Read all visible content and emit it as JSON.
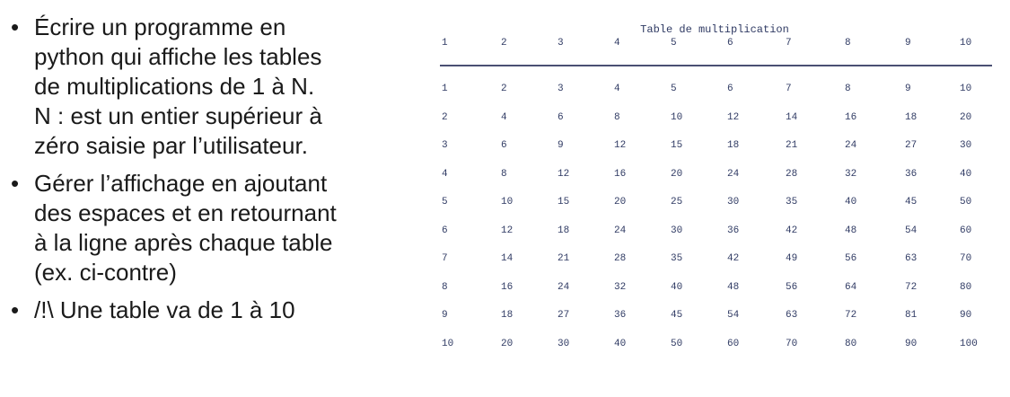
{
  "bullets": [
    "Écrire un programme en\npython qui affiche les tables\nde multiplications de 1 à N.\nN : est un entier supérieur à\nzéro saisie par l’utilisateur.",
    "Gérer l’affichage en ajoutant\ndes espaces et en retournant\nà la ligne après chaque table\n(ex. ci-contre)",
    "/!\\ Une table va de 1 à 10"
  ],
  "bullet_symbol": "•",
  "table": {
    "title": "Table de multiplication",
    "header": [
      "1",
      "2",
      "3",
      "4",
      "5",
      "6",
      "7",
      "8",
      "9",
      "10"
    ],
    "rows": [
      [
        "1",
        "2",
        "3",
        "4",
        "5",
        "6",
        "7",
        "8",
        "9",
        "10"
      ],
      [
        "2",
        "4",
        "6",
        "8",
        "10",
        "12",
        "14",
        "16",
        "18",
        "20"
      ],
      [
        "3",
        "6",
        "9",
        "12",
        "15",
        "18",
        "21",
        "24",
        "27",
        "30"
      ],
      [
        "4",
        "8",
        "12",
        "16",
        "20",
        "24",
        "28",
        "32",
        "36",
        "40"
      ],
      [
        "5",
        "10",
        "15",
        "20",
        "25",
        "30",
        "35",
        "40",
        "45",
        "50"
      ],
      [
        "6",
        "12",
        "18",
        "24",
        "30",
        "36",
        "42",
        "48",
        "54",
        "60"
      ],
      [
        "7",
        "14",
        "21",
        "28",
        "35",
        "42",
        "49",
        "56",
        "63",
        "70"
      ],
      [
        "8",
        "16",
        "24",
        "32",
        "40",
        "48",
        "56",
        "64",
        "72",
        "80"
      ],
      [
        "9",
        "18",
        "27",
        "36",
        "45",
        "54",
        "63",
        "72",
        "81",
        "90"
      ],
      [
        "10",
        "20",
        "30",
        "40",
        "50",
        "60",
        "70",
        "80",
        "90",
        "100"
      ]
    ]
  }
}
